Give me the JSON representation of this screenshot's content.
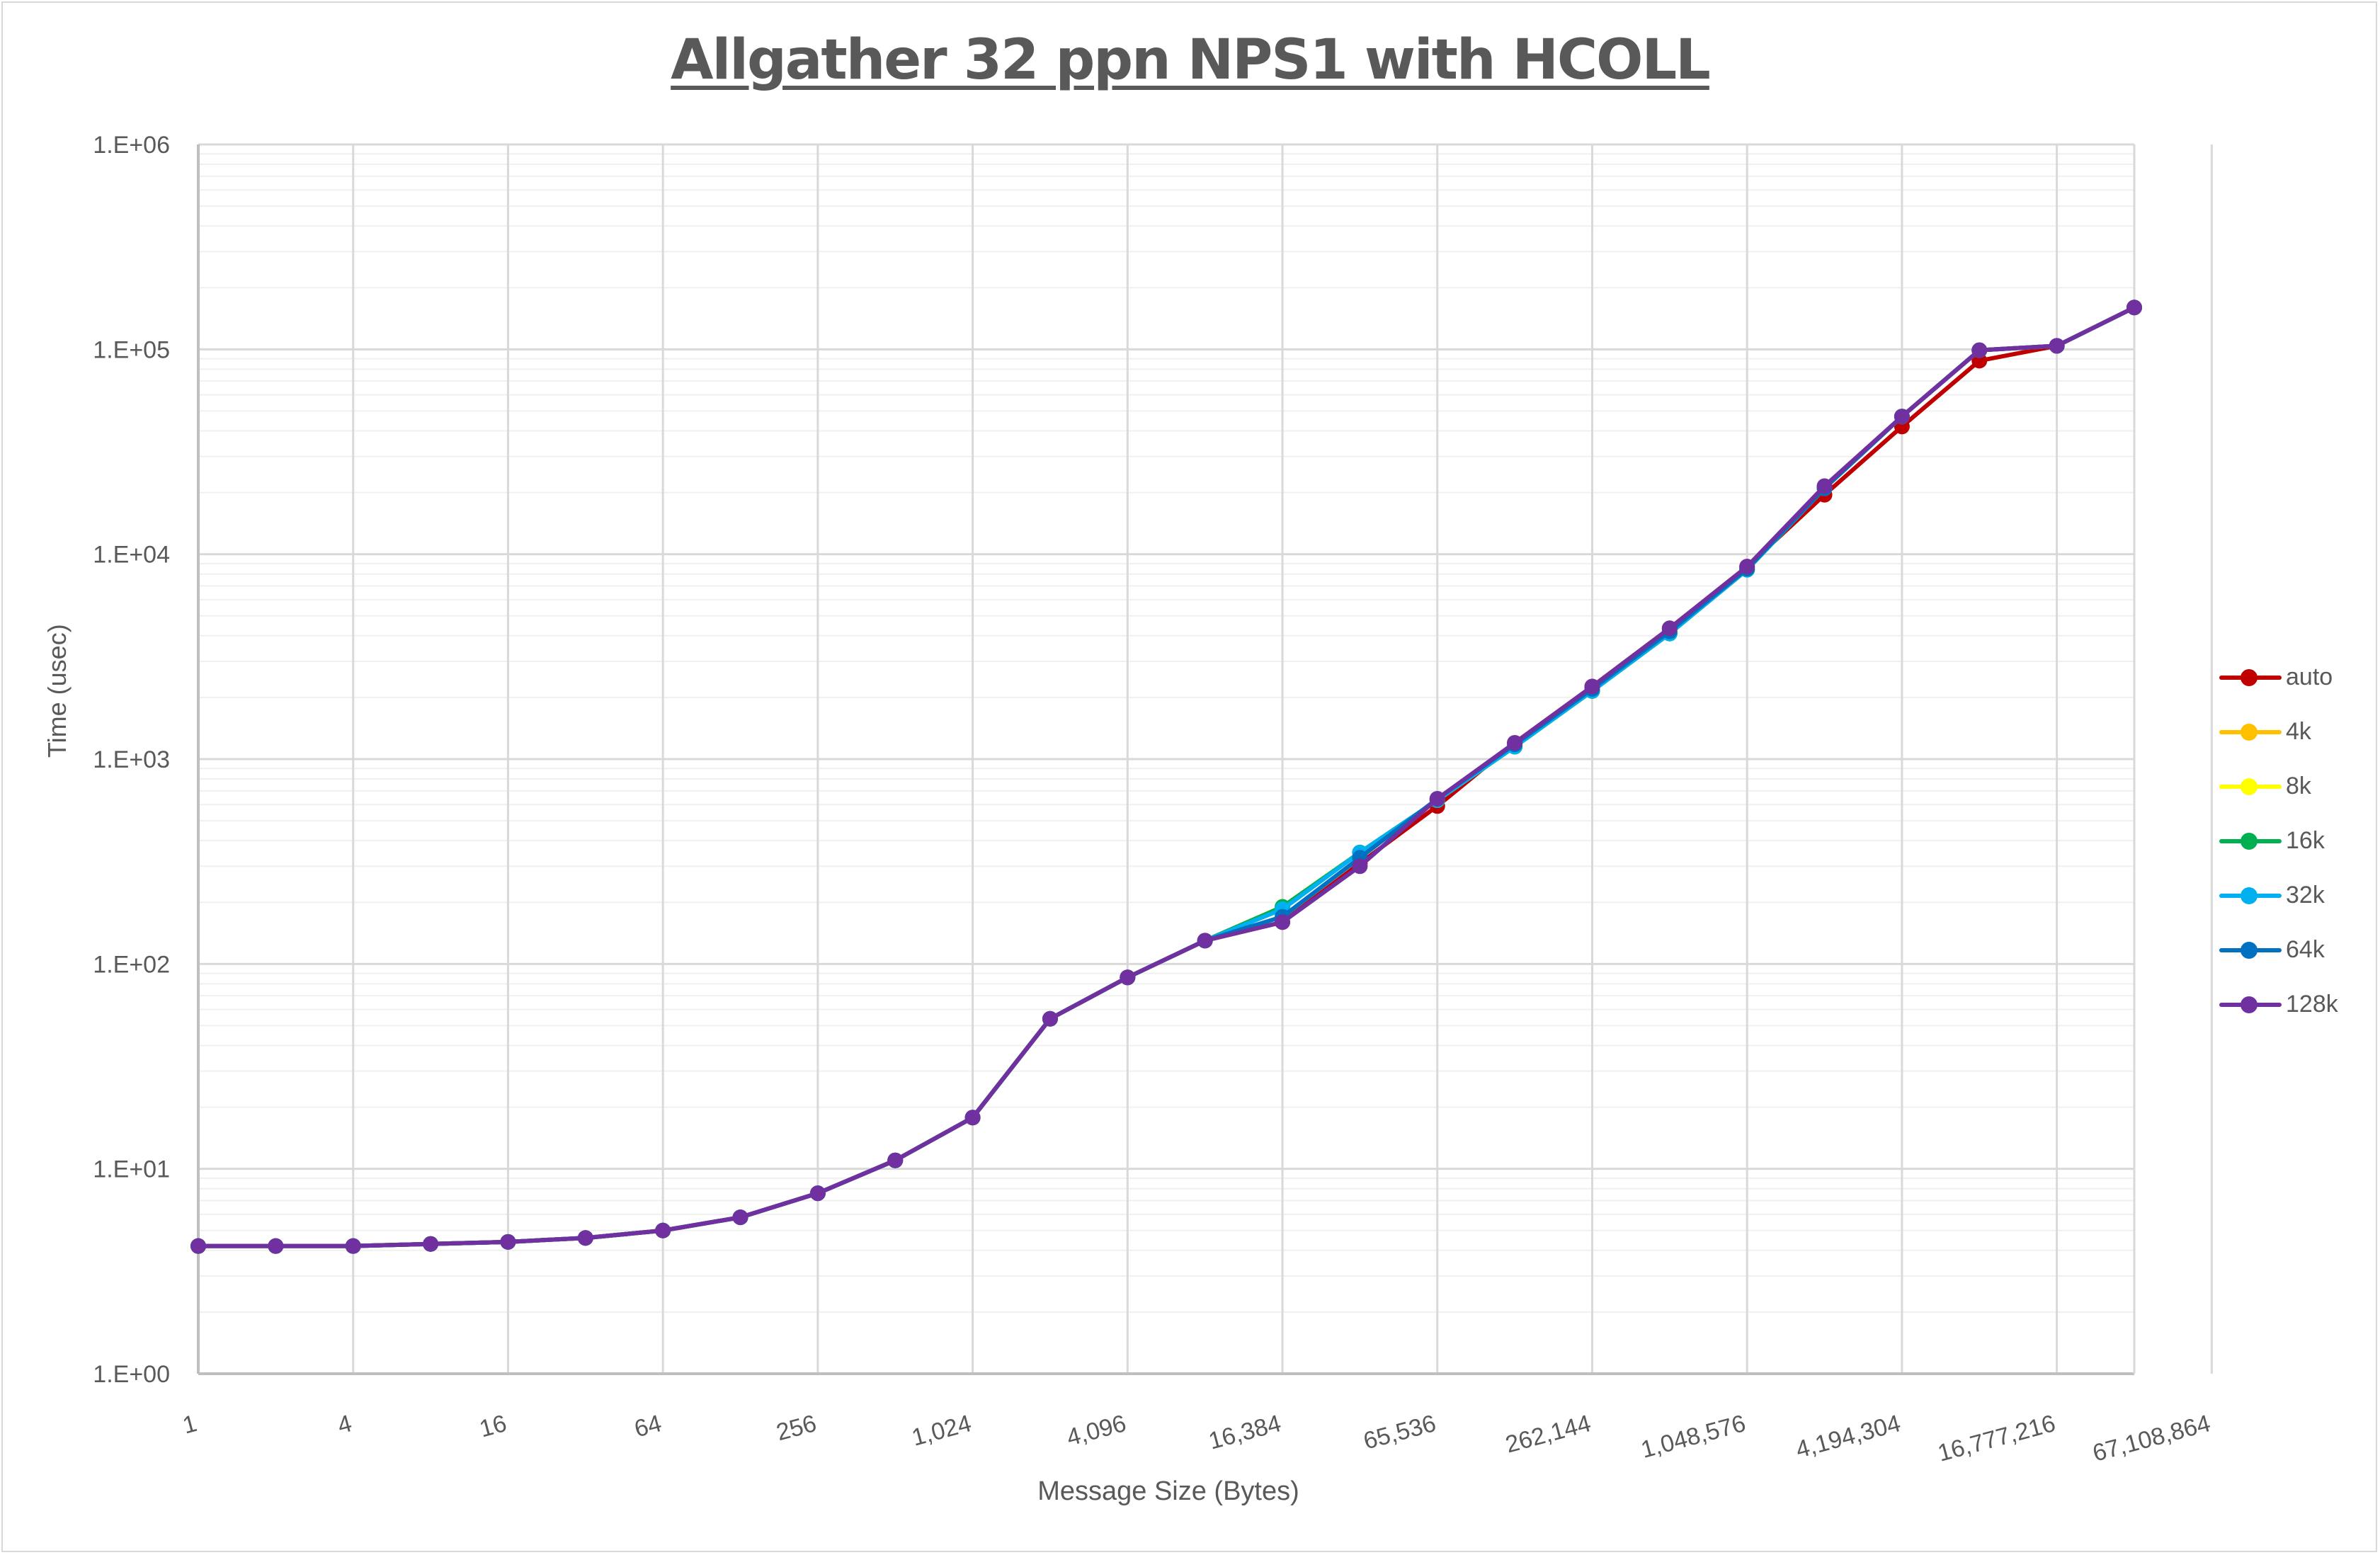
{
  "chart_data": {
    "type": "line",
    "title": "Allgather 32 ppn NPS1 with HCOLL",
    "xlabel": "Message Size (Bytes)",
    "ylabel": "Time (usec)",
    "yscale": "log",
    "ylim": [
      1,
      1000000
    ],
    "y_ticks": [
      "1.E+00",
      "1.E+01",
      "1.E+02",
      "1.E+03",
      "1.E+04",
      "1.E+05",
      "1.E+06"
    ],
    "xscale": "log2",
    "x_tick_labels": [
      "1",
      "4",
      "16",
      "64",
      "256",
      "1,024",
      "4,096",
      "16,384",
      "65,536",
      "262,144",
      "1,048,576",
      "4,194,304",
      "16,777,216",
      "67,108,864"
    ],
    "x": [
      1,
      2,
      4,
      8,
      16,
      32,
      64,
      128,
      256,
      512,
      1024,
      2048,
      4096,
      8192,
      16384,
      32768,
      65536,
      131072,
      262144,
      524288,
      1048576,
      2097152,
      4194304,
      8388608,
      16777216,
      33554432
    ],
    "grid": true,
    "legend_position": "right",
    "series": [
      {
        "name": "auto",
        "color": "#C00000",
        "values": [
          4.2,
          4.2,
          4.2,
          4.3,
          4.4,
          4.6,
          5.0,
          5.8,
          7.6,
          11,
          17.8,
          54,
          86,
          130,
          160,
          310,
          590,
          1200,
          2260,
          4350,
          8700,
          19500,
          42000,
          88000,
          104000,
          160000
        ]
      },
      {
        "name": "4k",
        "color": "#FFC000",
        "values": [
          4.2,
          4.2,
          4.2,
          4.3,
          4.4,
          4.6,
          5.0,
          5.8,
          7.6,
          11,
          17.8,
          54,
          86,
          130,
          190,
          350,
          630,
          1150,
          2150,
          4100,
          8400,
          21000,
          47000,
          99000,
          104000,
          160000
        ]
      },
      {
        "name": "8k",
        "color": "#FFFF00",
        "values": [
          4.2,
          4.2,
          4.2,
          4.3,
          4.4,
          4.6,
          5.0,
          5.8,
          7.6,
          11,
          17.8,
          54,
          86,
          130,
          190,
          350,
          630,
          1150,
          2150,
          4100,
          8400,
          21000,
          47000,
          99000,
          104000,
          160000
        ]
      },
      {
        "name": "16k",
        "color": "#00B050",
        "values": [
          4.2,
          4.2,
          4.2,
          4.3,
          4.4,
          4.6,
          5.0,
          5.8,
          7.6,
          11,
          17.8,
          54,
          86,
          130,
          190,
          350,
          630,
          1150,
          2150,
          4100,
          8400,
          21000,
          47000,
          99000,
          104000,
          160000
        ]
      },
      {
        "name": "32k",
        "color": "#00B0F0",
        "values": [
          4.2,
          4.2,
          4.2,
          4.3,
          4.4,
          4.6,
          5.0,
          5.8,
          7.6,
          11,
          17.8,
          54,
          86,
          130,
          185,
          350,
          630,
          1150,
          2150,
          4100,
          8400,
          21000,
          47000,
          99000,
          104000,
          160000
        ]
      },
      {
        "name": "64k",
        "color": "#0070C0",
        "values": [
          4.2,
          4.2,
          4.2,
          4.3,
          4.4,
          4.6,
          5.0,
          5.8,
          7.6,
          11,
          17.8,
          54,
          86,
          130,
          170,
          330,
          640,
          1180,
          2200,
          4200,
          8500,
          21000,
          47000,
          99000,
          104000,
          160000
        ]
      },
      {
        "name": "128k",
        "color": "#7030A0",
        "values": [
          4.2,
          4.2,
          4.2,
          4.3,
          4.4,
          4.6,
          5.0,
          5.8,
          7.6,
          11,
          17.8,
          54,
          86,
          130,
          160,
          300,
          640,
          1200,
          2260,
          4350,
          8700,
          21500,
          47000,
          99000,
          104000,
          160000
        ]
      }
    ]
  }
}
